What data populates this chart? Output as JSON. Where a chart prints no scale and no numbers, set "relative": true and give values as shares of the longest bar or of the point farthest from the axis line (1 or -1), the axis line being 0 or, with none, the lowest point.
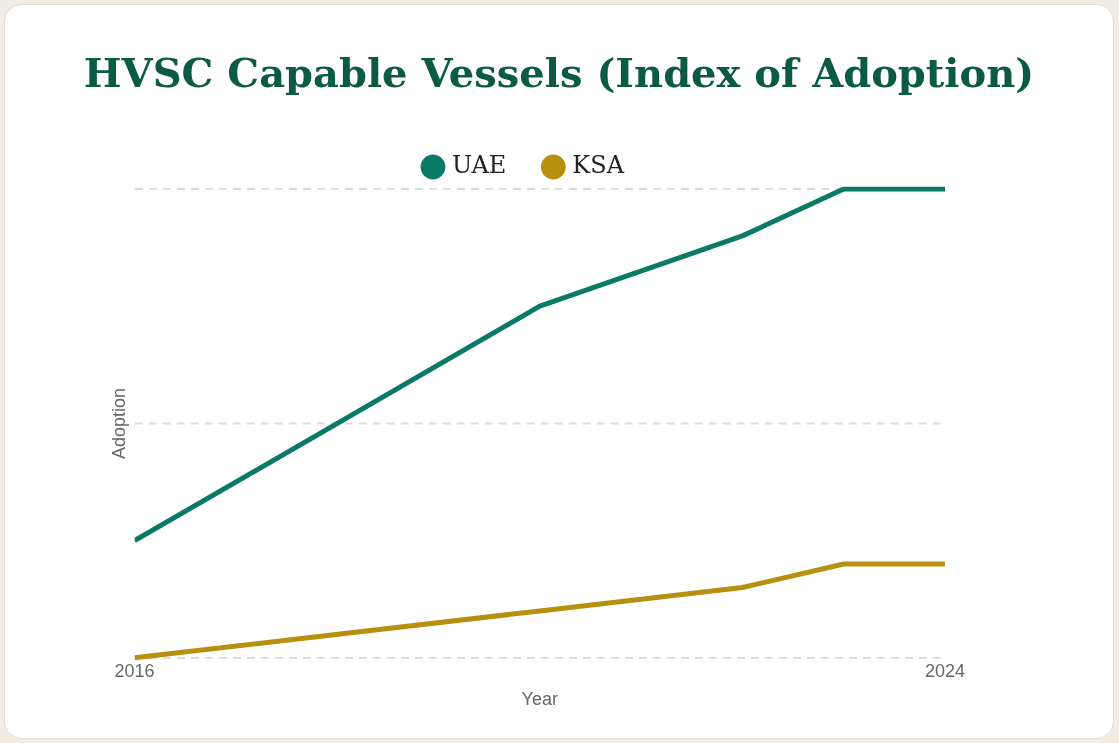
{
  "chart_data": {
    "type": "line",
    "title": "HVSC Capable Vessels (Index of Adoption)",
    "xlabel": "Year",
    "ylabel": "Adoption",
    "relative": true,
    "x": [
      2016,
      2020,
      2022,
      2023,
      2024
    ],
    "xlim": [
      2016,
      2024
    ],
    "xticks": [
      2016,
      2024
    ],
    "series": [
      {
        "name": "UAE",
        "color": "#0a7a66",
        "values": [
          0.25,
          0.75,
          0.9,
          1,
          1
        ]
      },
      {
        "name": "KSA",
        "color": "#b8900f",
        "values": [
          0,
          0.1,
          0.15,
          0.2,
          0.2
        ]
      }
    ],
    "ref_lines": [
      {
        "axis": "y",
        "value": 0.5,
        "color": "#dddddd",
        "line_style": "dashed"
      }
    ],
    "grid": "y",
    "legend": "top",
    "line_style": "solid"
  }
}
